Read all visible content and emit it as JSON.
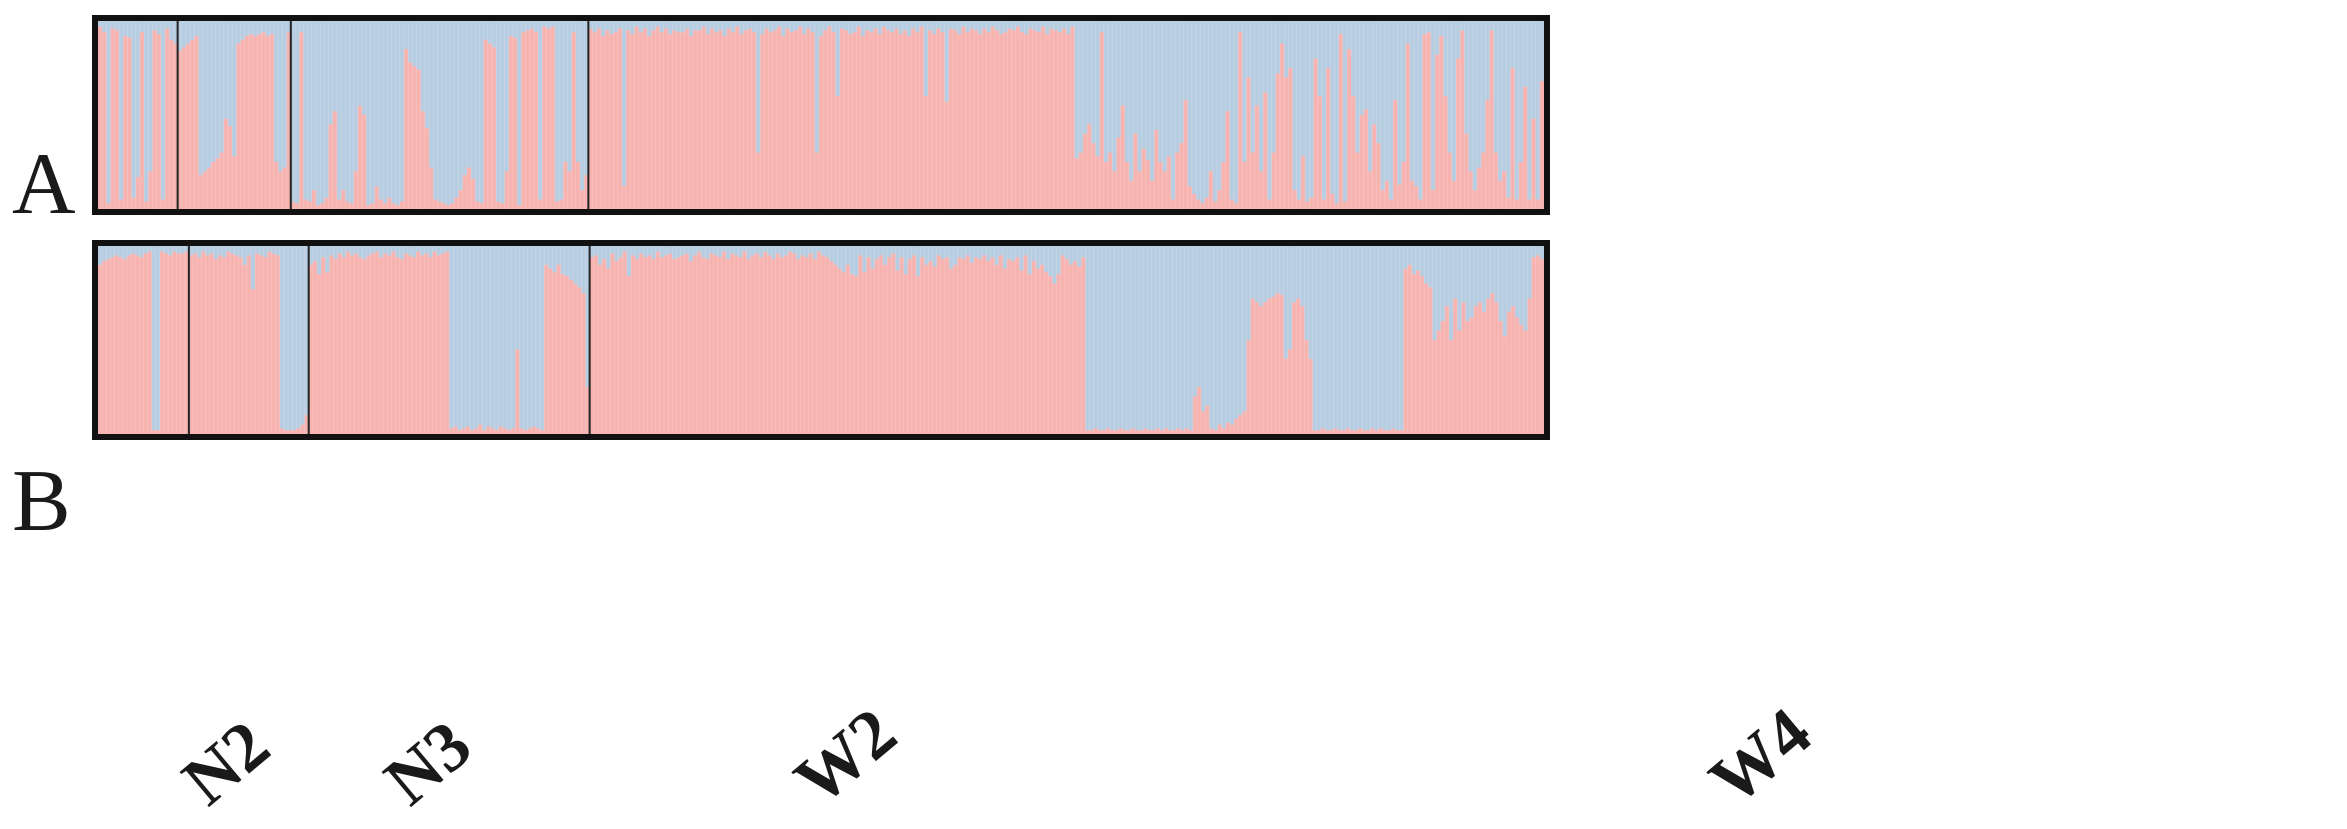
{
  "chart_data": [
    {
      "type": "stacked-bar",
      "panel_label": "A",
      "colors": {
        "cluster1": "#f7b3b0",
        "cluster2": "#b7cde2",
        "border": "#111111"
      },
      "populations": [
        {
          "name": "N2",
          "n": 19,
          "values": [
            0.97,
            0.94,
            0.03,
            0.96,
            0.95,
            0.05,
            0.92,
            0.91,
            0.06,
            0.17,
            0.94,
            0.04,
            0.2,
            0.95,
            0.93,
            0.05,
            0.96,
            0.9,
            0.88
          ]
        },
        {
          "name": "N3",
          "n": 27,
          "values": [
            0.84,
            0.86,
            0.88,
            0.9,
            0.92,
            0.18,
            0.2,
            0.22,
            0.25,
            0.27,
            0.3,
            0.48,
            0.44,
            0.28,
            0.88,
            0.9,
            0.92,
            0.93,
            0.92,
            0.93,
            0.94,
            0.92,
            0.93,
            0.25,
            0.2,
            0.22,
            0.94
          ]
        },
        {
          "name": "W2",
          "n": 71,
          "values": [
            0.04,
            0.03,
            0.94,
            0.05,
            0.04,
            0.1,
            0.02,
            0.03,
            0.06,
            0.45,
            0.52,
            0.05,
            0.1,
            0.04,
            0.03,
            0.2,
            0.55,
            0.5,
            0.02,
            0.03,
            0.12,
            0.05,
            0.03,
            0.06,
            0.03,
            0.02,
            0.04,
            0.85,
            0.78,
            0.76,
            0.74,
            0.52,
            0.43,
            0.22,
            0.05,
            0.04,
            0.03,
            0.02,
            0.03,
            0.06,
            0.1,
            0.18,
            0.22,
            0.16,
            0.04,
            0.03,
            0.9,
            0.88,
            0.86,
            0.04,
            0.03,
            0.2,
            0.92,
            0.91,
            0.02,
            0.94,
            0.95,
            0.96,
            0.94,
            0.05,
            0.97,
            0.96,
            0.97,
            0.04,
            0.05,
            0.25,
            0.2,
            0.94,
            0.25,
            0.1,
            0.18
          ]
        },
        {
          "name": "W4",
          "n": 224,
          "values": [
            0.96,
            0.94,
            0.96,
            0.92,
            0.95,
            0.93,
            0.94,
            0.96,
            0.12,
            0.95,
            0.93,
            0.97,
            0.94,
            0.96,
            0.92,
            0.95,
            0.97,
            0.94,
            0.96,
            0.93,
            0.95,
            0.94,
            0.94,
            0.96,
            0.92,
            0.95,
            0.95,
            0.97,
            0.93,
            0.96,
            0.94,
            0.95,
            0.92,
            0.96,
            0.94,
            0.97,
            0.93,
            0.95,
            0.96,
            0.94,
            0.3,
            0.93,
            0.96,
            0.94,
            0.95,
            0.97,
            0.92,
            0.96,
            0.94,
            0.95,
            0.97,
            0.93,
            0.96,
            0.94,
            0.3,
            0.92,
            0.95,
            0.97,
            0.94,
            0.6,
            0.96,
            0.95,
            0.93,
            0.94,
            0.97,
            0.92,
            0.95,
            0.94,
            0.96,
            0.93,
            0.97,
            0.95,
            0.94,
            0.96,
            0.93,
            0.95,
            0.92,
            0.96,
            0.94,
            0.97,
            0.6,
            0.95,
            0.93,
            0.96,
            0.94,
            0.57,
            0.96,
            0.95,
            0.93,
            0.97,
            0.94,
            0.96,
            0.95,
            0.93,
            0.96,
            0.94,
            0.97,
            0.95,
            0.93,
            0.94,
            0.96,
            0.95,
            0.97,
            0.94,
            0.93,
            0.96,
            0.95,
            0.94,
            0.97,
            0.93,
            0.96,
            0.95,
            0.94,
            0.96,
            0.93,
            0.97,
            0.27,
            0.3,
            0.4,
            0.45,
            0.35,
            0.28,
            0.94,
            0.25,
            0.3,
            0.2,
            0.38,
            0.55,
            0.25,
            0.15,
            0.4,
            0.2,
            0.32,
            0.26,
            0.15,
            0.42,
            0.25,
            0.2,
            0.28,
            0.05,
            0.3,
            0.35,
            0.58,
            0.12,
            0.08,
            0.05,
            0.03,
            0.06,
            0.2,
            0.04,
            0.1,
            0.25,
            0.52,
            0.05,
            0.03,
            0.94,
            0.25,
            0.7,
            0.3,
            0.55,
            0.2,
            0.62,
            0.05,
            0.3,
            0.72,
            0.88,
            0.7,
            0.75,
            0.1,
            0.05,
            0.28,
            0.04,
            0.06,
            0.8,
            0.6,
            0.05,
            0.75,
            0.08,
            0.03,
            0.93,
            0.04,
            0.85,
            0.6,
            0.3,
            0.5,
            0.53,
            0.2,
            0.45,
            0.35,
            0.1,
            0.15,
            0.05,
            0.58,
            0.13,
            0.25,
            0.88,
            0.15,
            0.12,
            0.05,
            0.93,
            0.94,
            0.1,
            0.82,
            0.92,
            0.6,
            0.3,
            0.15,
            0.8,
            0.95,
            0.4,
            0.2,
            0.1,
            0.22,
            0.3,
            0.58,
            0.95,
            0.3,
            0.15,
            0.2,
            0.06,
            0.75,
            0.05,
            0.25,
            0.65,
            0.05,
            0.48,
            0.05,
            0.68
          ]
        }
      ]
    },
    {
      "type": "stacked-bar",
      "panel_label": "B",
      "colors": {
        "cluster1": "#f7b3b0",
        "cluster2": "#b7cde2",
        "border": "#111111"
      },
      "populations": [
        {
          "name": "N2",
          "n": 22,
          "values": [
            0.9,
            0.92,
            0.93,
            0.94,
            0.95,
            0.94,
            0.93,
            0.95,
            0.96,
            0.95,
            0.94,
            0.96,
            0.97,
            0.02,
            0.02,
            0.97,
            0.96,
            0.95,
            0.97,
            0.96,
            0.96,
            0.97
          ]
        },
        {
          "name": "N3",
          "n": 29,
          "values": [
            0.95,
            0.96,
            0.94,
            0.97,
            0.95,
            0.96,
            0.93,
            0.95,
            0.94,
            0.97,
            0.96,
            0.95,
            0.94,
            0.9,
            0.95,
            0.77,
            0.96,
            0.95,
            0.94,
            0.97,
            0.96,
            0.95,
            0.03,
            0.02,
            0.02,
            0.02,
            0.03,
            0.05,
            0.1
          ]
        },
        {
          "name": "W2",
          "n": 68,
          "values": [
            0.9,
            0.92,
            0.85,
            0.94,
            0.86,
            0.95,
            0.93,
            0.96,
            0.94,
            0.97,
            0.95,
            0.96,
            0.94,
            0.93,
            0.95,
            0.96,
            0.97,
            0.94,
            0.96,
            0.95,
            0.97,
            0.94,
            0.93,
            0.96,
            0.95,
            0.94,
            0.97,
            0.95,
            0.96,
            0.94,
            0.97,
            0.95,
            0.96,
            0.97,
            0.03,
            0.04,
            0.02,
            0.03,
            0.04,
            0.02,
            0.03,
            0.05,
            0.02,
            0.04,
            0.03,
            0.02,
            0.04,
            0.03,
            0.02,
            0.03,
            0.45,
            0.03,
            0.02,
            0.03,
            0.04,
            0.03,
            0.02,
            0.9,
            0.88,
            0.86,
            0.9,
            0.85,
            0.84,
            0.82,
            0.8,
            0.78,
            0.75,
            0.25
          ]
        },
        {
          "name": "W4",
          "n": 224,
          "values": [
            0.94,
            0.95,
            0.9,
            0.93,
            0.88,
            0.96,
            0.92,
            0.94,
            0.97,
            0.84,
            0.95,
            0.93,
            0.96,
            0.94,
            0.95,
            0.93,
            0.97,
            0.94,
            0.95,
            0.96,
            0.93,
            0.94,
            0.95,
            0.96,
            0.92,
            0.95,
            0.97,
            0.94,
            0.93,
            0.96,
            0.95,
            0.94,
            0.97,
            0.93,
            0.96,
            0.95,
            0.94,
            0.97,
            0.93,
            0.95,
            0.96,
            0.94,
            0.97,
            0.95,
            0.93,
            0.96,
            0.94,
            0.95,
            0.97,
            0.96,
            0.93,
            0.95,
            0.94,
            0.96,
            0.93,
            0.97,
            0.95,
            0.94,
            0.92,
            0.9,
            0.88,
            0.86,
            0.9,
            0.85,
            0.84,
            0.95,
            0.86,
            0.94,
            0.88,
            0.93,
            0.95,
            0.9,
            0.94,
            0.96,
            0.87,
            0.94,
            0.85,
            0.93,
            0.95,
            0.84,
            0.94,
            0.9,
            0.92,
            0.89,
            0.95,
            0.93,
            0.94,
            0.88,
            0.9,
            0.94,
            0.93,
            0.95,
            0.91,
            0.94,
            0.93,
            0.95,
            0.92,
            0.94,
            0.9,
            0.95,
            0.88,
            0.93,
            0.92,
            0.94,
            0.87,
            0.95,
            0.85,
            0.92,
            0.88,
            0.9,
            0.86,
            0.84,
            0.8,
            0.85,
            0.95,
            0.93,
            0.9,
            0.92,
            0.89,
            0.94,
            0.02,
            0.02,
            0.03,
            0.02,
            0.02,
            0.03,
            0.02,
            0.02,
            0.03,
            0.02,
            0.02,
            0.03,
            0.02,
            0.02,
            0.03,
            0.02,
            0.02,
            0.03,
            0.02,
            0.03,
            0.02,
            0.02,
            0.03,
            0.02,
            0.03,
            0.02,
            0.2,
            0.25,
            0.12,
            0.15,
            0.03,
            0.02,
            0.05,
            0.03,
            0.06,
            0.05,
            0.08,
            0.1,
            0.12,
            0.5,
            0.72,
            0.7,
            0.68,
            0.7,
            0.72,
            0.73,
            0.75,
            0.74,
            0.4,
            0.45,
            0.7,
            0.72,
            0.68,
            0.5,
            0.4,
            0.02,
            0.02,
            0.03,
            0.02,
            0.02,
            0.03,
            0.02,
            0.02,
            0.03,
            0.02,
            0.02,
            0.03,
            0.02,
            0.02,
            0.03,
            0.02,
            0.03,
            0.02,
            0.02,
            0.03,
            0.02,
            0.02,
            0.88,
            0.9,
            0.85,
            0.87,
            0.84,
            0.8,
            0.78,
            0.5,
            0.55,
            0.6,
            0.68,
            0.5,
            0.72,
            0.55,
            0.7,
            0.6,
            0.62,
            0.68,
            0.7,
            0.65,
            0.72,
            0.75,
            0.7,
            0.6,
            0.52,
            0.65,
            0.68,
            0.62,
            0.58,
            0.55,
            0.72,
            0.94,
            0.95,
            0.93
          ]
        }
      ]
    }
  ],
  "population_labels": [
    "N2",
    "N3",
    "W2",
    "W4"
  ]
}
